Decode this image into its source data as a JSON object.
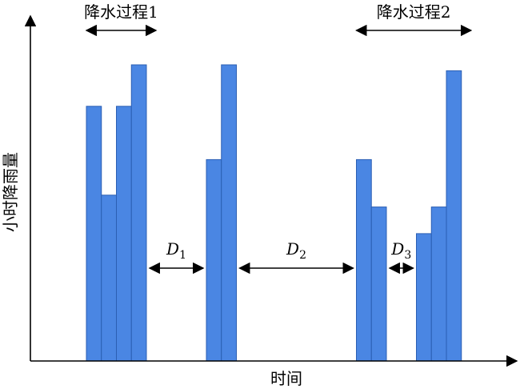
{
  "chart_data": {
    "type": "bar",
    "title": "",
    "xlabel": "时间",
    "ylabel": "小时降雨量",
    "ylim": [
      0,
      100
    ],
    "grid": false,
    "legend": "none",
    "bar_color": "#4a86e3",
    "bar_stroke": "#2b5fb3",
    "x_slots": [
      8,
      9,
      10,
      11,
      12,
      13,
      14,
      15,
      16,
      17,
      18,
      19,
      20,
      21,
      22,
      23,
      24,
      25,
      26,
      27,
      28
    ],
    "bars": [
      {
        "slot": 8,
        "value": 86
      },
      {
        "slot": 9,
        "value": 56
      },
      {
        "slot": 10,
        "value": 86
      },
      {
        "slot": 11,
        "value": 100
      },
      {
        "slot": 16,
        "value": 68
      },
      {
        "slot": 17,
        "value": 100
      },
      {
        "slot": 26,
        "value": 68
      },
      {
        "slot": 27,
        "value": 52
      },
      {
        "slot": 30,
        "value": 43
      },
      {
        "slot": 31,
        "value": 52
      },
      {
        "slot": 32,
        "value": 98
      }
    ],
    "annotations": {
      "events": [
        {
          "label": "降水过程1",
          "from_slot": 8,
          "to_slot": 11
        },
        {
          "label": "降水过程2",
          "from_slot": 26,
          "to_slot": 32
        }
      ],
      "gaps": [
        {
          "label": "D",
          "sub": "1",
          "after_slot": 11,
          "before_slot": 16
        },
        {
          "label": "D",
          "sub": "2",
          "after_slot": 17,
          "before_slot": 26
        },
        {
          "label": "D",
          "sub": "3",
          "after_slot": 27,
          "before_slot": 30
        }
      ]
    }
  }
}
